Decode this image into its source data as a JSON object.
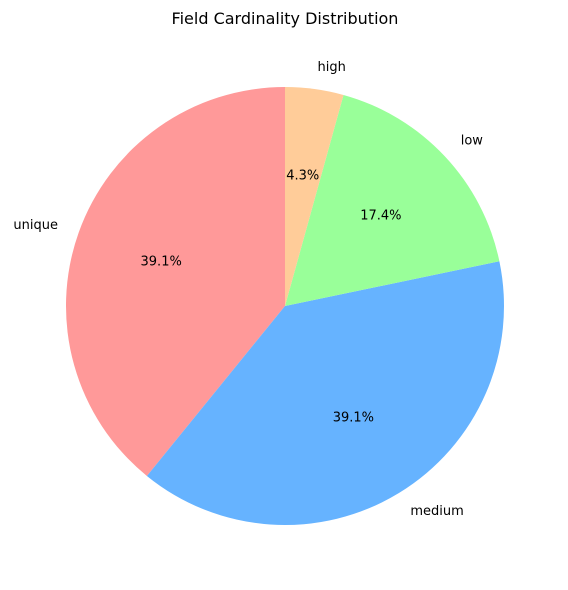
{
  "chart_data": {
    "type": "pie",
    "title": "Field Cardinality Distribution",
    "start_angle_deg": 90,
    "direction": "counterclockwise",
    "slices": [
      {
        "label": "unique",
        "value": 39.1,
        "pct_label": "39.1%",
        "color": "#ff9999"
      },
      {
        "label": "medium",
        "value": 39.1,
        "pct_label": "39.1%",
        "color": "#66b3ff"
      },
      {
        "label": "low",
        "value": 17.4,
        "pct_label": "17.4%",
        "color": "#99ff99"
      },
      {
        "label": "high",
        "value": 4.3,
        "pct_label": "4.3%",
        "color": "#ffcc99"
      }
    ],
    "legend": "none"
  }
}
